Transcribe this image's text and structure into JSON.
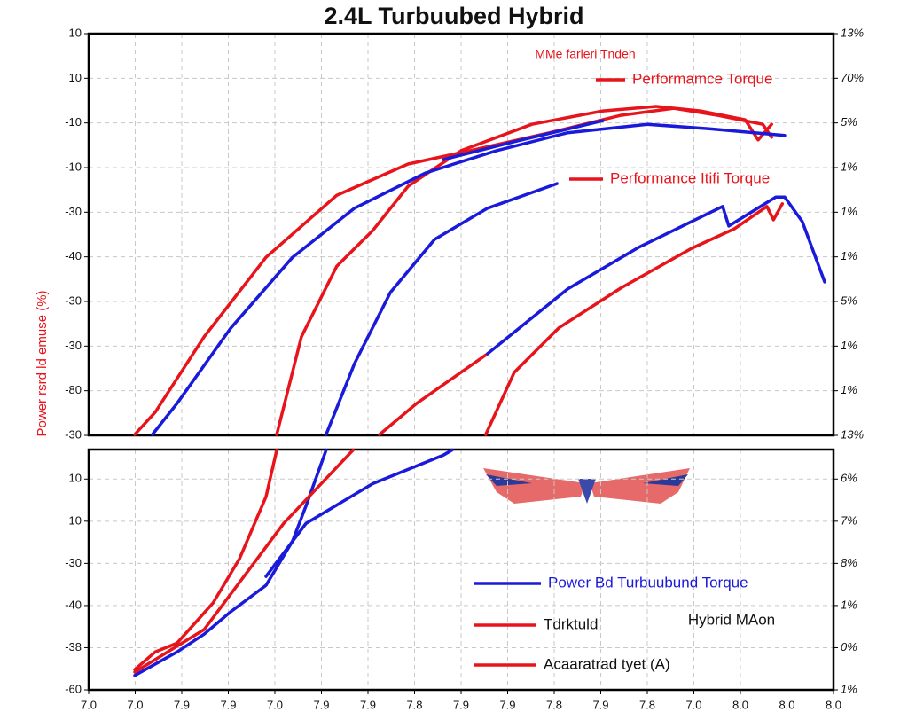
{
  "chart_data": [
    {
      "type": "line",
      "title": "2.4L Turbuubed Hybrid",
      "ylabel": "Power rsrd ld emuse (%)",
      "annotations": [
        "MMe farleri Tndeh"
      ],
      "xlim": [
        0,
        16
      ],
      "ylim": [
        0,
        9
      ],
      "y2lim": [
        0,
        9
      ],
      "grid": true,
      "yticks": [
        {
          "value": 9,
          "label": "10"
        },
        {
          "value": 8,
          "label": "10"
        },
        {
          "value": 7,
          "label": "-10"
        },
        {
          "value": 6,
          "label": "-10"
        },
        {
          "value": 5,
          "label": "-30"
        },
        {
          "value": 4,
          "label": "-40"
        },
        {
          "value": 3,
          "label": "-30"
        },
        {
          "value": 2,
          "label": "-30"
        },
        {
          "value": 1,
          "label": "-80"
        },
        {
          "value": 0,
          "label": "-30"
        }
      ],
      "y2ticks": [
        {
          "value": 9,
          "label": "13%"
        },
        {
          "value": 8,
          "label": "70%"
        },
        {
          "value": 7,
          "label": "5%"
        },
        {
          "value": 6,
          "label": "1%"
        },
        {
          "value": 5,
          "label": "1%"
        },
        {
          "value": 4,
          "label": "1%"
        },
        {
          "value": 3,
          "label": "5%"
        },
        {
          "value": 2,
          "label": "1%"
        },
        {
          "value": 1,
          "label": "1%"
        },
        {
          "value": 0,
          "label": "13%"
        }
      ],
      "series": [
        {
          "name": "Performamce Torque",
          "color": "#e8141b",
          "x": [
            0.99,
            1.43,
            2.48,
            3.81,
            5.33,
            6.86,
            8.19,
            9.9,
            11.43,
            12.57,
            13.52,
            14.48,
            14.67
          ],
          "values": [
            0.02,
            0.52,
            2.21,
            3.99,
            5.38,
            6.08,
            6.38,
            6.78,
            7.17,
            7.33,
            7.17,
            6.97,
            6.68
          ]
        },
        {
          "name": "Performance Itifi Torque",
          "color": "#e8141b",
          "x": [
            4.04,
            4.57,
            5.33,
            6.1,
            6.86,
            8.0,
            9.52,
            11.05,
            12.19,
            13.14,
            14.1,
            14.38,
            14.67
          ],
          "values": [
            0.02,
            2.21,
            3.79,
            4.59,
            5.58,
            6.38,
            6.97,
            7.27,
            7.37,
            7.27,
            7.07,
            6.62,
            6.97
          ]
        },
        {
          "color": "#1a1adb",
          "x": [
            1.37,
            1.9,
            3.05,
            4.38,
            5.71,
            7.24,
            8.76,
            10.29,
            12.0,
            13.33,
            14.95
          ],
          "values": [
            0.02,
            0.72,
            2.4,
            3.99,
            5.09,
            5.88,
            6.38,
            6.78,
            6.97,
            6.87,
            6.72
          ]
        },
        {
          "color": "#1a1adb",
          "x": [
            7.62,
            9.14,
            11.05
          ],
          "values": [
            6.18,
            6.58,
            7.05
          ]
        },
        {
          "color": "#1a1adb",
          "x": [
            5.1,
            5.71,
            6.48,
            7.43,
            8.57,
            10.06
          ],
          "values": [
            0.02,
            1.61,
            3.2,
            4.39,
            5.09,
            5.64
          ]
        },
        {
          "color": "#e8141b",
          "x": [
            6.25,
            7.05,
            8.57
          ],
          "values": [
            0.02,
            0.72,
            1.83
          ]
        },
        {
          "color": "#1a1adb",
          "x": [
            8.57,
            10.29,
            11.81,
            13.62,
            13.75,
            14.76,
            14.95,
            15.33,
            15.81
          ],
          "values": [
            1.83,
            3.28,
            4.21,
            5.13,
            4.69,
            5.34,
            5.34,
            4.79,
            3.44
          ]
        },
        {
          "color": "#e8141b",
          "x": [
            8.53,
            9.14,
            10.1,
            11.43,
            12.95,
            13.87,
            14.57,
            14.71,
            14.9
          ],
          "values": [
            0.02,
            1.41,
            2.41,
            3.3,
            4.19,
            4.63,
            5.13,
            4.83,
            5.19
          ]
        }
      ]
    },
    {
      "type": "line",
      "annotations": [
        "Hybrid MAon"
      ],
      "xlim": [
        0,
        16
      ],
      "ylim": [
        0,
        5.7
      ],
      "y2lim": [
        0,
        5.7
      ],
      "grid": true,
      "xticks": [
        {
          "value": 0,
          "label": "7.0"
        },
        {
          "value": 1,
          "label": "7.0"
        },
        {
          "value": 2,
          "label": "7.9"
        },
        {
          "value": 3,
          "label": "7.9"
        },
        {
          "value": 4,
          "label": "7.0"
        },
        {
          "value": 5,
          "label": "7.9"
        },
        {
          "value": 6,
          "label": "7.9"
        },
        {
          "value": 7,
          "label": "7.8"
        },
        {
          "value": 8,
          "label": "7.9"
        },
        {
          "value": 9,
          "label": "7.9"
        },
        {
          "value": 10,
          "label": "7.8"
        },
        {
          "value": 11,
          "label": "7.9"
        },
        {
          "value": 12,
          "label": "7.8"
        },
        {
          "value": 13,
          "label": "7.0"
        },
        {
          "value": 14,
          "label": "8.0"
        },
        {
          "value": 15,
          "label": "8.0"
        },
        {
          "value": 16,
          "label": "8.0"
        }
      ],
      "yticks": [
        {
          "value": 5,
          "label": "10"
        },
        {
          "value": 4,
          "label": "10"
        },
        {
          "value": 3,
          "label": "-30"
        },
        {
          "value": 2,
          "label": "-40"
        },
        {
          "value": 1,
          "label": "-38"
        },
        {
          "value": 0,
          "label": "-60"
        }
      ],
      "y2ticks": [
        {
          "value": 5,
          "label": "6%"
        },
        {
          "value": 4,
          "label": "7%"
        },
        {
          "value": 3,
          "label": "8%"
        },
        {
          "value": 2,
          "label": "1%"
        },
        {
          "value": 1,
          "label": "0%"
        },
        {
          "value": 0,
          "label": "1%"
        }
      ],
      "series": [
        {
          "name": "Power Bd Turbuubund Torque",
          "color": "#1a1adb",
          "x": [
            0.99,
            1.9,
            2.48,
            3.05,
            3.81,
            4.38,
            4.67,
            5.1
          ],
          "values": [
            0.34,
            0.9,
            1.32,
            1.85,
            2.48,
            3.53,
            4.37,
            5.69
          ]
        },
        {
          "name": "Tdrktuld",
          "color": "#e8141b",
          "x": [
            0.99,
            1.43,
            1.9,
            2.67,
            3.24,
            3.81,
            4.04
          ],
          "values": [
            0.48,
            0.9,
            1.11,
            2.06,
            3.11,
            4.58,
            5.69
          ]
        },
        {
          "name": "Acaaratrad tyet (A)",
          "color": "#e8141b",
          "x": [
            0.99,
            2.48,
            4.19,
            5.68
          ],
          "values": [
            0.42,
            1.43,
            3.95,
            5.69
          ]
        },
        {
          "color": "#1a1adb",
          "x": [
            3.81,
            4.67,
            6.1,
            7.62,
            7.81
          ],
          "values": [
            2.69,
            3.95,
            4.89,
            5.57,
            5.69
          ]
        }
      ]
    }
  ]
}
